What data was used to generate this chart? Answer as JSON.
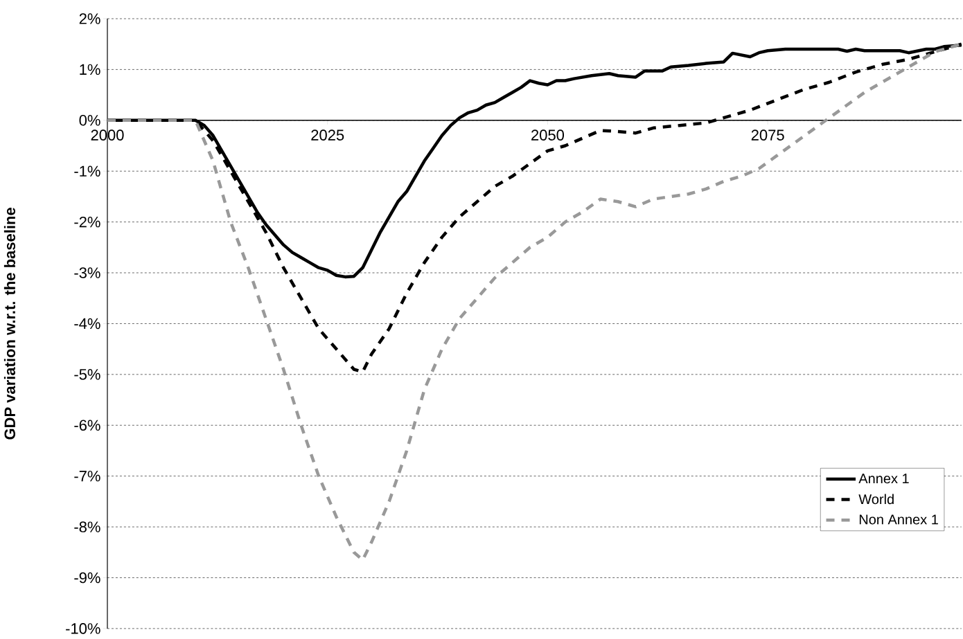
{
  "chart_data": {
    "type": "line",
    "ylabel": "GDP variation w.r.t. the baseline",
    "xlim": [
      2000,
      2097
    ],
    "ylim": [
      -10,
      2
    ],
    "xticks": [
      2000,
      2025,
      2050,
      2075
    ],
    "yticks": [
      {
        "value": -10,
        "label": "-10%"
      },
      {
        "value": -9,
        "label": "-9%"
      },
      {
        "value": -8,
        "label": "-8%"
      },
      {
        "value": -7,
        "label": "-7%"
      },
      {
        "value": -6,
        "label": "-6%"
      },
      {
        "value": -5,
        "label": "-5%"
      },
      {
        "value": -4,
        "label": "-4%"
      },
      {
        "value": -3,
        "label": "-3%"
      },
      {
        "value": -2,
        "label": "-2%"
      },
      {
        "value": -1,
        "label": "-1%"
      },
      {
        "value": 0,
        "label": "0%"
      },
      {
        "value": 1,
        "label": "1%"
      },
      {
        "value": 2,
        "label": "2%"
      }
    ],
    "grid": "y",
    "legend": "bottom right",
    "marker": "none",
    "series": [
      {
        "name": "Annex 1",
        "color": "#000000",
        "line_style": "solid",
        "x": [
          2000,
          2010,
          2011,
          2012,
          2013,
          2014,
          2015,
          2016,
          2017,
          2018,
          2019,
          2020,
          2021,
          2022,
          2023,
          2024,
          2025,
          2026,
          2027,
          2028,
          2029,
          2030,
          2031,
          2032,
          2033,
          2034,
          2035,
          2036,
          2037,
          2038,
          2039,
          2040,
          2041,
          2042,
          2043,
          2044,
          2045,
          2046,
          2047,
          2048,
          2049,
          2050,
          2051,
          2052,
          2053,
          2055,
          2057,
          2058,
          2060,
          2061,
          2063,
          2064,
          2066,
          2068,
          2070,
          2071,
          2073,
          2074,
          2075,
          2077,
          2083,
          2084,
          2085,
          2086,
          2090,
          2091,
          2093,
          2094,
          2095,
          2097
        ],
        "values": [
          0,
          0,
          -0.1,
          -0.3,
          -0.6,
          -0.9,
          -1.2,
          -1.5,
          -1.8,
          -2.05,
          -2.25,
          -2.45,
          -2.6,
          -2.7,
          -2.8,
          -2.9,
          -2.95,
          -3.05,
          -3.08,
          -3.07,
          -2.9,
          -2.55,
          -2.2,
          -1.9,
          -1.6,
          -1.4,
          -1.1,
          -0.8,
          -0.55,
          -0.3,
          -0.1,
          0.05,
          0.15,
          0.2,
          0.3,
          0.35,
          0.45,
          0.55,
          0.65,
          0.78,
          0.73,
          0.7,
          0.78,
          0.78,
          0.82,
          0.88,
          0.92,
          0.88,
          0.85,
          0.97,
          0.97,
          1.05,
          1.08,
          1.12,
          1.15,
          1.32,
          1.25,
          1.33,
          1.37,
          1.4,
          1.4,
          1.36,
          1.4,
          1.37,
          1.37,
          1.33,
          1.4,
          1.4,
          1.45,
          1.48
        ]
      },
      {
        "name": "World",
        "color": "#000000",
        "line_style": "dashed",
        "x": [
          2000,
          2010,
          2012,
          2014,
          2016,
          2018,
          2020,
          2022,
          2024,
          2026,
          2028,
          2029,
          2030,
          2032,
          2034,
          2036,
          2038,
          2040,
          2042,
          2044,
          2046,
          2048,
          2050,
          2052,
          2054,
          2056,
          2058,
          2060,
          2062,
          2065,
          2068,
          2070,
          2073,
          2076,
          2079,
          2082,
          2085,
          2088,
          2091,
          2094,
          2097
        ],
        "values": [
          0,
          0,
          -0.4,
          -1.0,
          -1.6,
          -2.2,
          -2.9,
          -3.5,
          -4.1,
          -4.5,
          -4.9,
          -4.95,
          -4.6,
          -4.1,
          -3.4,
          -2.8,
          -2.3,
          -1.9,
          -1.6,
          -1.3,
          -1.1,
          -0.85,
          -0.6,
          -0.5,
          -0.35,
          -0.2,
          -0.22,
          -0.25,
          -0.15,
          -0.1,
          -0.05,
          0.05,
          0.2,
          0.4,
          0.6,
          0.75,
          0.95,
          1.1,
          1.2,
          1.35,
          1.5
        ]
      },
      {
        "name": "Non Annex 1",
        "color": "#999999",
        "line_style": "dashed",
        "x": [
          2000,
          2010,
          2012,
          2014,
          2016,
          2018,
          2020,
          2022,
          2024,
          2026,
          2028,
          2029,
          2030,
          2032,
          2034,
          2036,
          2038,
          2040,
          2042,
          2044,
          2046,
          2048,
          2050,
          2052,
          2054,
          2056,
          2058,
          2060,
          2062,
          2064,
          2066,
          2068,
          2070,
          2072,
          2074,
          2076,
          2078,
          2080,
          2082,
          2084,
          2086,
          2088,
          2090,
          2092,
          2094,
          2097
        ],
        "values": [
          0,
          0,
          -0.8,
          -2.0,
          -2.9,
          -3.9,
          -4.9,
          -6.0,
          -7.0,
          -7.8,
          -8.5,
          -8.65,
          -8.3,
          -7.5,
          -6.5,
          -5.3,
          -4.5,
          -3.9,
          -3.5,
          -3.1,
          -2.8,
          -2.5,
          -2.3,
          -2.0,
          -1.8,
          -1.55,
          -1.6,
          -1.7,
          -1.55,
          -1.5,
          -1.45,
          -1.35,
          -1.2,
          -1.1,
          -0.95,
          -0.7,
          -0.45,
          -0.2,
          0.05,
          0.3,
          0.55,
          0.75,
          0.95,
          1.15,
          1.35,
          1.5
        ]
      }
    ]
  }
}
